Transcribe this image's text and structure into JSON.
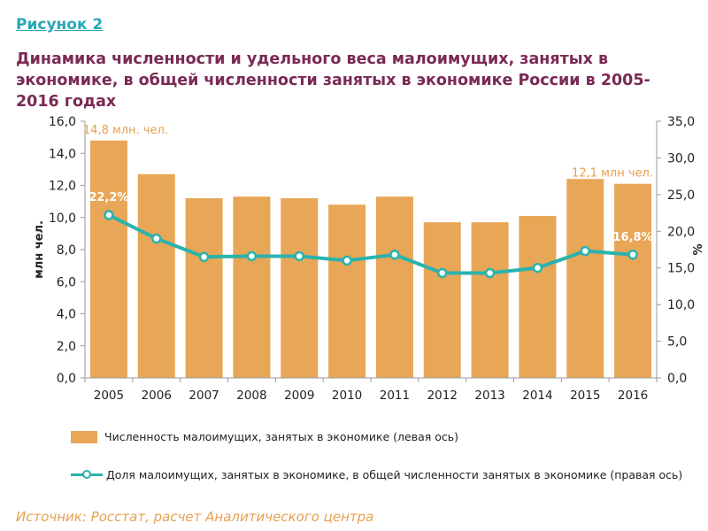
{
  "header": {
    "figure_label": "Рисунок 2",
    "title": "Динамика численности и удельного веса малоимущих, занятых в экономике, в общей численности занятых в экономике России в 2005-2016 годах"
  },
  "chart_data": {
    "type": "bar",
    "categories": [
      "2005",
      "2006",
      "2007",
      "2008",
      "2009",
      "2010",
      "2011",
      "2012",
      "2013",
      "2014",
      "2015",
      "2016"
    ],
    "ylabel": "млн чел.",
    "y2label": "%",
    "ylim": [
      0,
      16
    ],
    "y2lim": [
      0,
      35
    ],
    "yticks": [
      "0,0",
      "2,0",
      "4,0",
      "6,0",
      "8,0",
      "10,0",
      "12,0",
      "14,0",
      "16,0"
    ],
    "y2ticks": [
      "0,0",
      "5,0",
      "10,0",
      "15,0",
      "20,0",
      "25,0",
      "30,0",
      "35,0"
    ],
    "series": [
      {
        "name": "Численность малоимущих, занятых в экономике (левая ось)",
        "type": "bar",
        "axis": "left",
        "values": [
          14.8,
          12.7,
          11.2,
          11.3,
          11.2,
          10.8,
          11.3,
          9.7,
          9.7,
          10.1,
          12.4,
          12.1
        ]
      },
      {
        "name": "Доля малоимущих, занятых в экономике, в общей численности занятых в экономике (правая ось)",
        "type": "line",
        "axis": "right",
        "values": [
          22.2,
          19.0,
          16.5,
          16.6,
          16.6,
          16.0,
          16.8,
          14.3,
          14.3,
          15.0,
          17.3,
          16.8
        ]
      }
    ],
    "annotations": {
      "bar_first": "14,8 млн. чел.",
      "bar_last": "12,1 млн чел.",
      "line_first": "22,2%",
      "line_last": "16,8%"
    },
    "colors": {
      "bar": "#e8a657",
      "line": "#2ab3ad",
      "annotation": "#e7a04f"
    },
    "grid": false,
    "legend_position": "bottom"
  },
  "legend": {
    "bar_label": "Численность малоимущих, занятых в экономике (левая ось)",
    "line_label": "Доля малоимущих, занятых в экономике, в общей численности занятых в экономике (правая ось)"
  },
  "footer": {
    "source": "Источник: Росстат, расчет Аналитического центра"
  }
}
